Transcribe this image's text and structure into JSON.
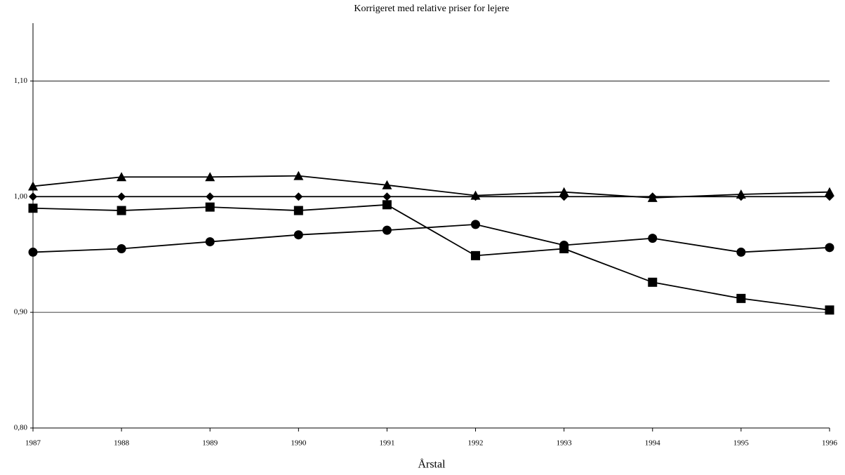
{
  "chart_data": {
    "type": "line",
    "title": "Korrigeret med relative priser for lejere",
    "xlabel": "Årstal",
    "x": [
      1987,
      1988,
      1989,
      1990,
      1991,
      1992,
      1993,
      1994,
      1995,
      1996
    ],
    "xlim": [
      1987,
      1996
    ],
    "xticks": [
      1987,
      1988,
      1989,
      1990,
      1991,
      1992,
      1993,
      1994,
      1995,
      1996
    ],
    "ylim": [
      0.8,
      1.15
    ],
    "yticks": [
      {
        "value": 0.8,
        "label": "0,80"
      },
      {
        "value": 0.9,
        "label": "0,90"
      },
      {
        "value": 1.0,
        "label": "1,00"
      },
      {
        "value": 1.1,
        "label": "1,10"
      }
    ],
    "grid": true,
    "series": [
      {
        "color": "#000000",
        "marker": "diamond",
        "values": [
          1.0,
          1.0,
          1.0,
          1.0,
          1.0,
          1.0,
          1.0,
          1.0,
          1.0,
          1.0
        ]
      },
      {
        "color": "#000000",
        "marker": "triangle",
        "values": [
          1.009,
          1.017,
          1.017,
          1.018,
          1.01,
          1.001,
          1.004,
          0.999,
          1.002,
          1.004
        ]
      },
      {
        "color": "#000000",
        "marker": "square",
        "values": [
          0.99,
          0.988,
          0.991,
          0.988,
          0.993,
          0.949,
          0.955,
          0.926,
          0.912,
          0.902
        ]
      },
      {
        "color": "#000000",
        "marker": "circle",
        "values": [
          0.952,
          0.955,
          0.961,
          0.967,
          0.971,
          0.976,
          0.958,
          0.964,
          0.952,
          0.956
        ]
      }
    ]
  }
}
